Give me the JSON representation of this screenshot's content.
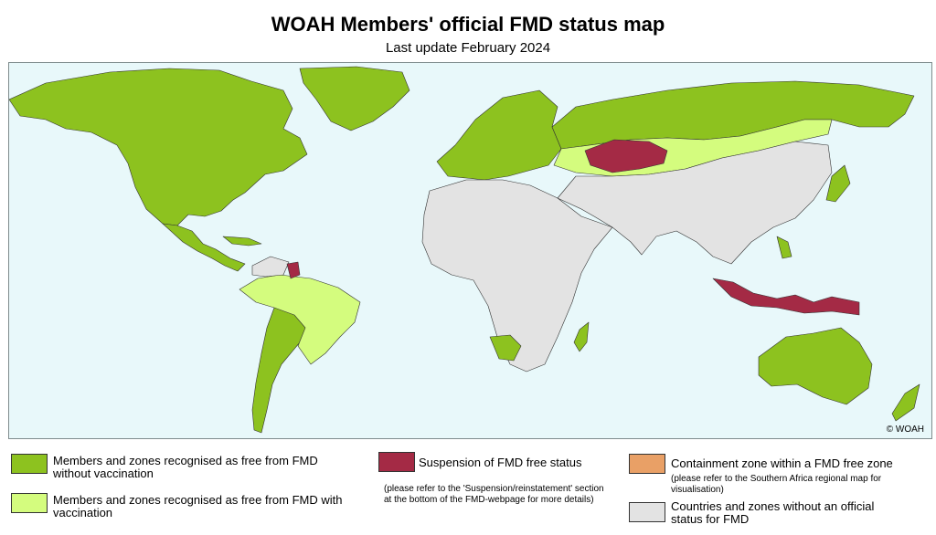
{
  "header": {
    "title": "WOAH Members' official FMD status map",
    "subtitle": "Last update February 2024"
  },
  "map": {
    "copyright": "© WOAH",
    "colors": {
      "ocean": "#e8f8fa",
      "free_without_vaccination": "#8dc21f",
      "free_with_vaccination": "#d4fc7e",
      "suspension": "#a42a45",
      "containment": "#e9a066",
      "no_status": "#e3e3e3",
      "border": "#333333"
    }
  },
  "legend": {
    "free_without_vaccination": "Members and zones recognised as free from FMD without vaccination",
    "free_with_vaccination": "Members and zones recognised as free from FMD with vaccination",
    "suspension": "Suspension of FMD free status",
    "suspension_note": "(please refer to the 'Suspension/reinstatement' section at the bottom of the FMD-webpage for more details)",
    "containment": "Containment zone within a FMD free zone",
    "containment_note": "(please refer to the Southern Africa regional map for visualisation)",
    "no_status": "Countries and zones without an official status for FMD"
  }
}
